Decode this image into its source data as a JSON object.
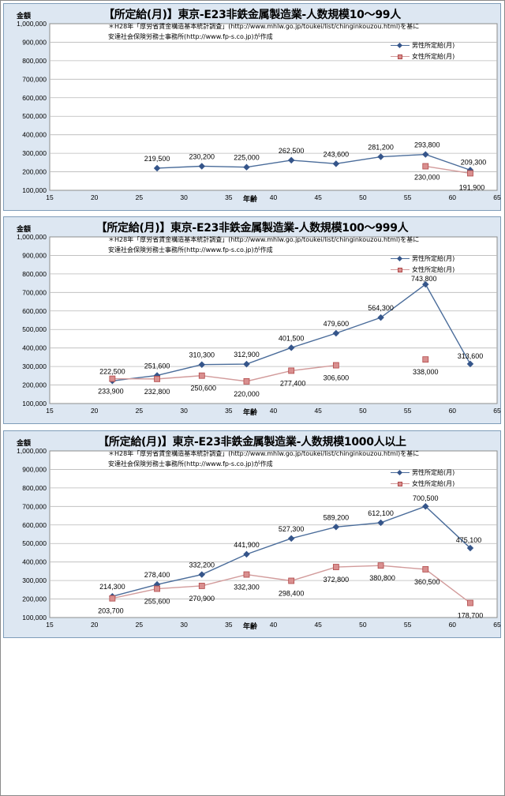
{
  "colors": {
    "male_line": "#4a6c9a",
    "male_marker": "#35558a",
    "female_line": "#d29b9b",
    "female_marker": "#d98f8f",
    "plot_bg": "#ffffff",
    "panel_bg": "#dde7f2",
    "grid": "#b8b8b8"
  },
  "charts": [
    {
      "title": "【所定給(月)】東京-E23非鉄金属製造業-人数規模10～99人",
      "ylabel": "金額",
      "xlabel": "年齢",
      "source_line1": "＊H28年「厚労省賃金構造基本統計調査」(http://www.mhlw.go.jp/toukei/list/chinginkouzou.html)を基に",
      "source_line2": "安達社会保険労務士事務所(http://www.fp-s.co.jp)が作成",
      "legend": [
        "男性所定給(月)",
        "女性所定給(月)"
      ]
    },
    {
      "title": "【所定給(月)】東京-E23非鉄金属製造業-人数規模100～999人",
      "ylabel": "金額",
      "xlabel": "年齢",
      "source_line1": "＊H28年「厚労省賃金構造基本統計調査」(http://www.mhlw.go.jp/toukei/list/chinginkouzou.html)を基に",
      "source_line2": "安達社会保険労務士事務所(http://www.fp-s.co.jp)が作成",
      "legend": [
        "男性所定給(月)",
        "女性所定給(月)"
      ]
    },
    {
      "title": "【所定給(月)】東京-E23非鉄金属製造業-人数規模1000人以上",
      "ylabel": "金額",
      "xlabel": "年齢",
      "source_line1": "＊H28年「厚労省賃金構造基本統計調査」(http://www.mhlw.go.jp/toukei/list/chinginkouzou.html)を基に",
      "source_line2": "安達社会保険労務士事務所(http://www.fp-s.co.jp)が作成",
      "legend": [
        "男性所定給(月)",
        "女性所定給(月)"
      ]
    }
  ],
  "chart_data": [
    {
      "type": "line",
      "xlim": [
        15,
        65
      ],
      "ylim": [
        100000,
        1000000
      ],
      "xticks": [
        "15",
        "20",
        "25",
        "30",
        "35",
        "40",
        "45",
        "50",
        "55",
        "60",
        "65"
      ],
      "yticks": [
        "1,000,000",
        "900,000",
        "800,000",
        "700,000",
        "600,000",
        "500,000",
        "400,000",
        "300,000",
        "200,000",
        "100,000"
      ],
      "series": [
        {
          "name": "男性所定給(月)",
          "x": [
            27,
            32,
            37,
            42,
            47,
            52,
            57,
            62
          ],
          "y": [
            219500,
            230200,
            225000,
            262500,
            243600,
            281200,
            293800,
            209300
          ],
          "labels": [
            "219,500",
            "230,200",
            "225,000",
            "262,500",
            "243,600",
            "281,200",
            "293,800",
            "209,300"
          ]
        },
        {
          "name": "女性所定給(月)",
          "x": [
            57,
            62
          ],
          "y": [
            230000,
            191900
          ],
          "labels": [
            "230,000",
            "191,900"
          ]
        }
      ]
    },
    {
      "type": "line",
      "xlim": [
        15,
        65
      ],
      "ylim": [
        100000,
        1000000
      ],
      "xticks": [
        "15",
        "20",
        "25",
        "30",
        "35",
        "40",
        "45",
        "50",
        "55",
        "60",
        "65"
      ],
      "yticks": [
        "1,000,000",
        "900,000",
        "800,000",
        "700,000",
        "600,000",
        "500,000",
        "400,000",
        "300,000",
        "200,000",
        "100,000"
      ],
      "series": [
        {
          "name": "男性所定給(月)",
          "x": [
            22,
            27,
            32,
            37,
            42,
            47,
            52,
            57,
            62
          ],
          "y": [
            222500,
            251600,
            310300,
            312900,
            401500,
            479600,
            564300,
            743800,
            313600
          ],
          "labels": [
            "222,500",
            "251,600",
            "310,300",
            "312,900",
            "401,500",
            "479,600",
            "564,300",
            "743,800",
            "313,600"
          ]
        },
        {
          "name": "女性所定給(月)",
          "x": [
            22,
            27,
            32,
            37,
            42,
            47,
            57
          ],
          "y": [
            233900,
            232800,
            250600,
            220000,
            277400,
            306600,
            338000
          ],
          "labels": [
            "233,900",
            "232,800",
            "250,600",
            "220,000",
            "277,400",
            "306,600",
            "338,000"
          ],
          "segments": [
            [
              0,
              5
            ],
            [
              6,
              6
            ]
          ]
        }
      ]
    },
    {
      "type": "line",
      "xlim": [
        15,
        65
      ],
      "ylim": [
        100000,
        1000000
      ],
      "xticks": [
        "15",
        "20",
        "25",
        "30",
        "35",
        "40",
        "45",
        "50",
        "55",
        "60",
        "65"
      ],
      "yticks": [
        "1,000,000",
        "900,000",
        "800,000",
        "700,000",
        "600,000",
        "500,000",
        "400,000",
        "300,000",
        "200,000",
        "100,000"
      ],
      "series": [
        {
          "name": "男性所定給(月)",
          "x": [
            22,
            27,
            32,
            37,
            42,
            47,
            52,
            57,
            62
          ],
          "y": [
            214300,
            278400,
            332200,
            441900,
            527300,
            589200,
            612100,
            700500,
            475100
          ],
          "labels": [
            "214,300",
            "278,400",
            "332,200",
            "441,900",
            "527,300",
            "589,200",
            "612,100",
            "700,500",
            "475,100"
          ]
        },
        {
          "name": "女性所定給(月)",
          "x": [
            22,
            27,
            32,
            37,
            42,
            47,
            52,
            57,
            62
          ],
          "y": [
            203700,
            255600,
            270900,
            332300,
            298400,
            372800,
            380800,
            360500,
            178700
          ],
          "labels": [
            "203,700",
            "255,600",
            "270,900",
            "332,300",
            "298,400",
            "372,800",
            "380,800",
            "360,500",
            "178,700"
          ]
        }
      ]
    }
  ]
}
